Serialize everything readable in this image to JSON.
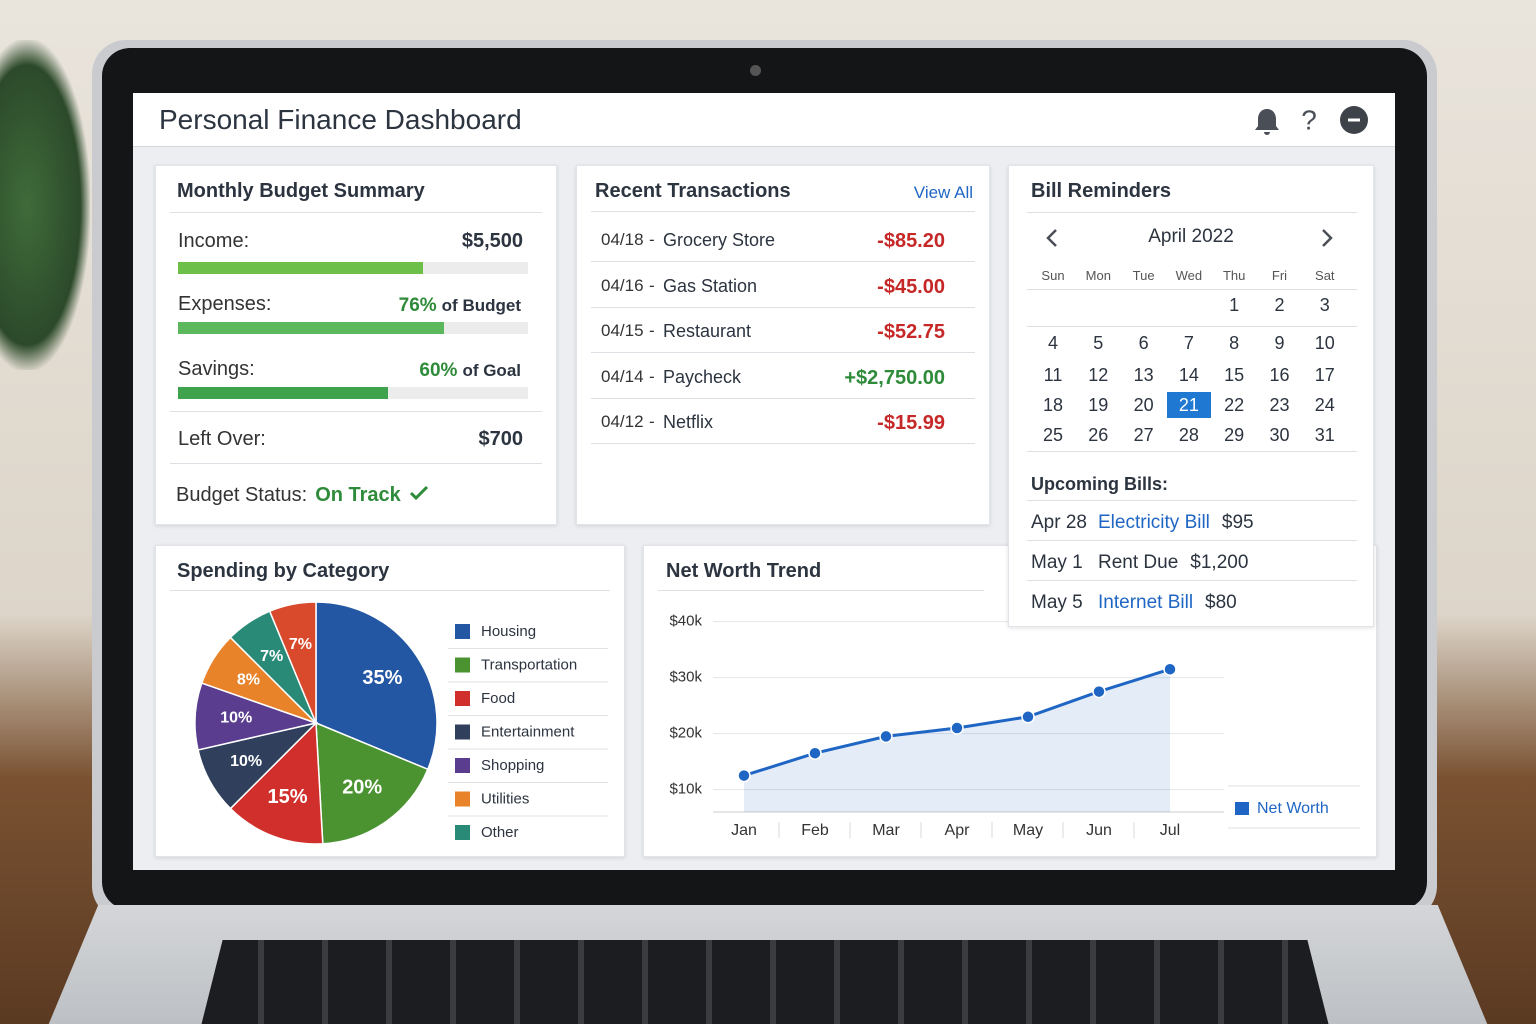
{
  "header": {
    "title": "Personal Finance Dashboard"
  },
  "budget": {
    "title": "Monthly Budget Summary",
    "income": {
      "label": "Income:",
      "amount": "$5,500",
      "progress": 70
    },
    "expenses": {
      "label": "Expenses:",
      "percent": {
        "value": 76,
        "label": "76%"
      },
      "suffix": "of Budget"
    },
    "savings": {
      "label": "Savings:",
      "percent": {
        "value": 60,
        "label": "60%"
      },
      "suffix": "of Goal"
    },
    "left_over": {
      "label": "Left Over:",
      "amount": "$700"
    },
    "status": {
      "label": "Budget Status:",
      "value": "On Track"
    }
  },
  "transactions": {
    "title": "Recent Transactions",
    "link": "View All",
    "separator": "-",
    "rows": [
      {
        "date": "04/18",
        "name": "Grocery Store",
        "amount": "-$85.20"
      },
      {
        "date": "04/16",
        "name": "Gas Station",
        "amount": "-$45.00"
      },
      {
        "date": "04/15",
        "name": "Restaurant",
        "amount": "-$52.75"
      },
      {
        "date": "04/14",
        "name": "Paycheck",
        "amount": "+$2,750.00"
      },
      {
        "date": "04/12",
        "name": "Netflix",
        "amount": "-$15.99"
      }
    ]
  },
  "bills": {
    "title": "Bill Reminders",
    "month": "April 2022",
    "weekdays": [
      "Sun",
      "Mon",
      "Tue",
      "Wed",
      "Thu",
      "Fri",
      "Sat"
    ],
    "days": [
      1,
      2,
      3,
      4,
      5,
      6,
      7,
      8,
      9,
      10,
      11,
      12,
      13,
      14,
      15,
      16,
      17,
      18,
      19,
      20,
      21,
      22,
      23,
      24,
      25,
      26,
      27,
      28,
      29,
      30,
      31
    ],
    "selected_day": 21,
    "upcoming_title": "Upcoming Bills:",
    "upcoming": [
      {
        "date": "Apr 28",
        "name": "Electricity Bill",
        "amount": "$95",
        "link": true
      },
      {
        "date": "May 1",
        "name": "Rent Due",
        "amount": "$1,200",
        "link": false
      },
      {
        "date": "May 5",
        "name": "Internet Bill",
        "amount": "$80",
        "link": true
      }
    ]
  },
  "chart_data": [
    {
      "type": "pie",
      "title": "Spending by Category",
      "categories": [
        "Housing",
        "Transportation",
        "Food",
        "Entertainment",
        "Shopping",
        "Utilities",
        "Other",
        null
      ],
      "values": [
        35,
        20,
        15,
        10,
        10,
        8,
        7,
        7
      ],
      "value_labels": [
        "35%",
        "20%",
        "15%",
        "10%",
        "10%",
        "8%",
        "7%",
        "7%"
      ],
      "colors": [
        "#2457a3",
        "#4a9330",
        "#d12f2b",
        "#2f3f5c",
        "#5a3d8e",
        "#e8832a",
        "#2a8a78",
        "#d94a2c"
      ]
    },
    {
      "type": "line",
      "title": "Net Worth Trend",
      "categories": [
        "Jan",
        "Feb",
        "Mar",
        "Apr",
        "May",
        "Jun",
        "Jul"
      ],
      "series": [
        {
          "name": "Net Worth",
          "color": "#1f66c4",
          "values": [
            12.5,
            16.5,
            19.5,
            21,
            23,
            27.5,
            31.5
          ]
        }
      ],
      "ylim": [
        6,
        41
      ],
      "yticks": [
        {
          "value": 10,
          "label": "$10k"
        },
        {
          "value": 20,
          "label": "$20k"
        },
        {
          "value": 30,
          "label": "$30k"
        },
        {
          "value": 40,
          "label": "$40k"
        }
      ],
      "grid": true
    }
  ]
}
